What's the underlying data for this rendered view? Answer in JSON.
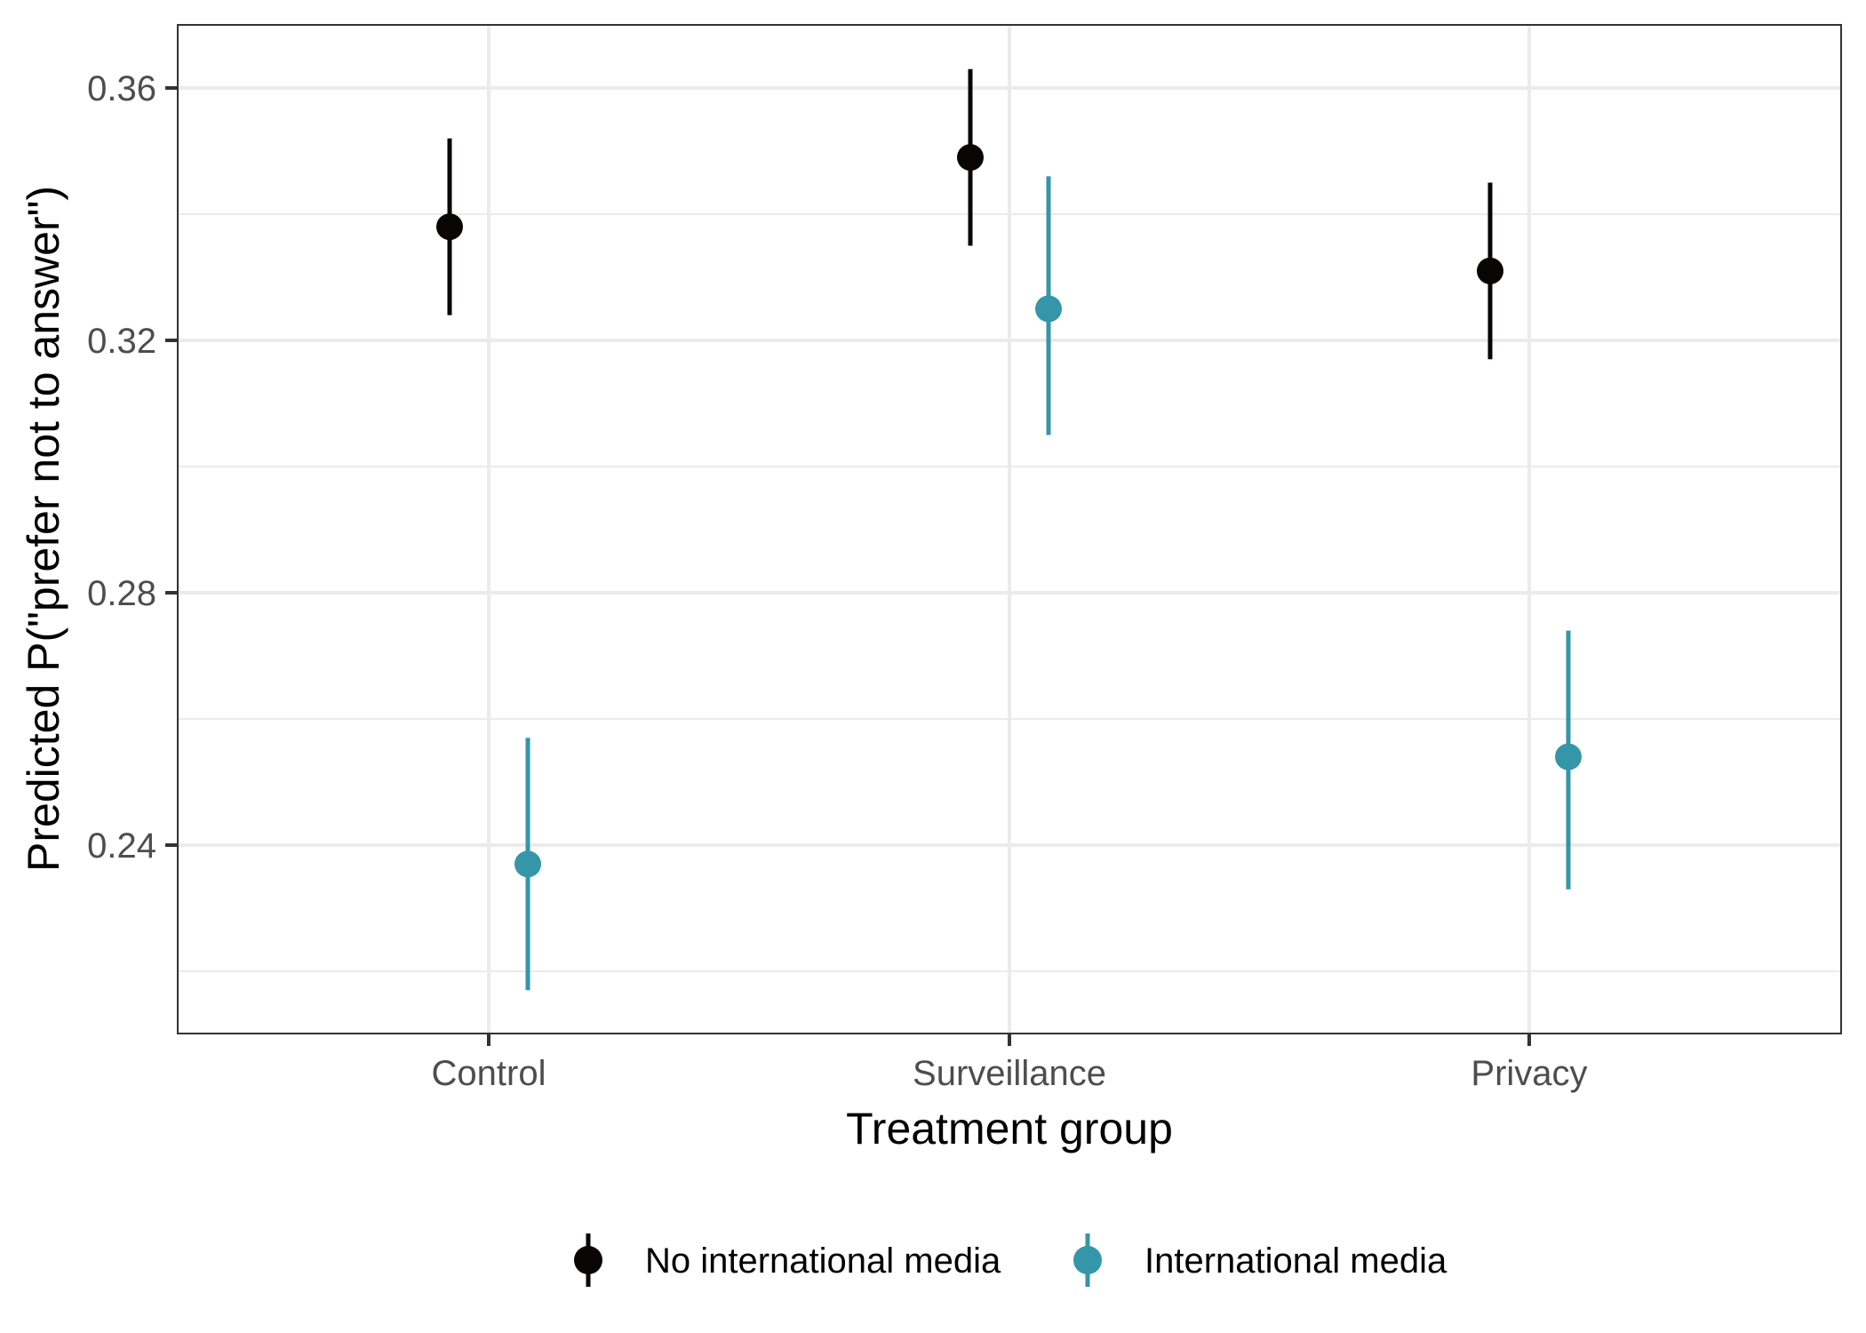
{
  "chart_data": {
    "type": "pointrange",
    "title": "",
    "xlabel": "Treatment group",
    "ylabel": "Predicted P(\"prefer not to answer\")",
    "categories": [
      "Control",
      "Surveillance",
      "Privacy"
    ],
    "yticks": [
      "0.24",
      "0.28",
      "0.32",
      "0.36"
    ],
    "ytick_values": [
      0.24,
      0.28,
      0.32,
      0.36
    ],
    "ylim": [
      0.208,
      0.37
    ],
    "grid": true,
    "legend_position": "bottom",
    "series": [
      {
        "name": "No international media",
        "color": "#0a0505",
        "values": [
          0.338,
          0.349,
          0.331
        ],
        "lower": [
          0.324,
          0.335,
          0.317
        ],
        "upper": [
          0.352,
          0.363,
          0.345
        ]
      },
      {
        "name": "International media",
        "color": "#3596a9",
        "values": [
          0.237,
          0.325,
          0.254
        ],
        "lower": [
          0.217,
          0.305,
          0.233
        ],
        "upper": [
          0.257,
          0.346,
          0.274
        ]
      }
    ]
  }
}
